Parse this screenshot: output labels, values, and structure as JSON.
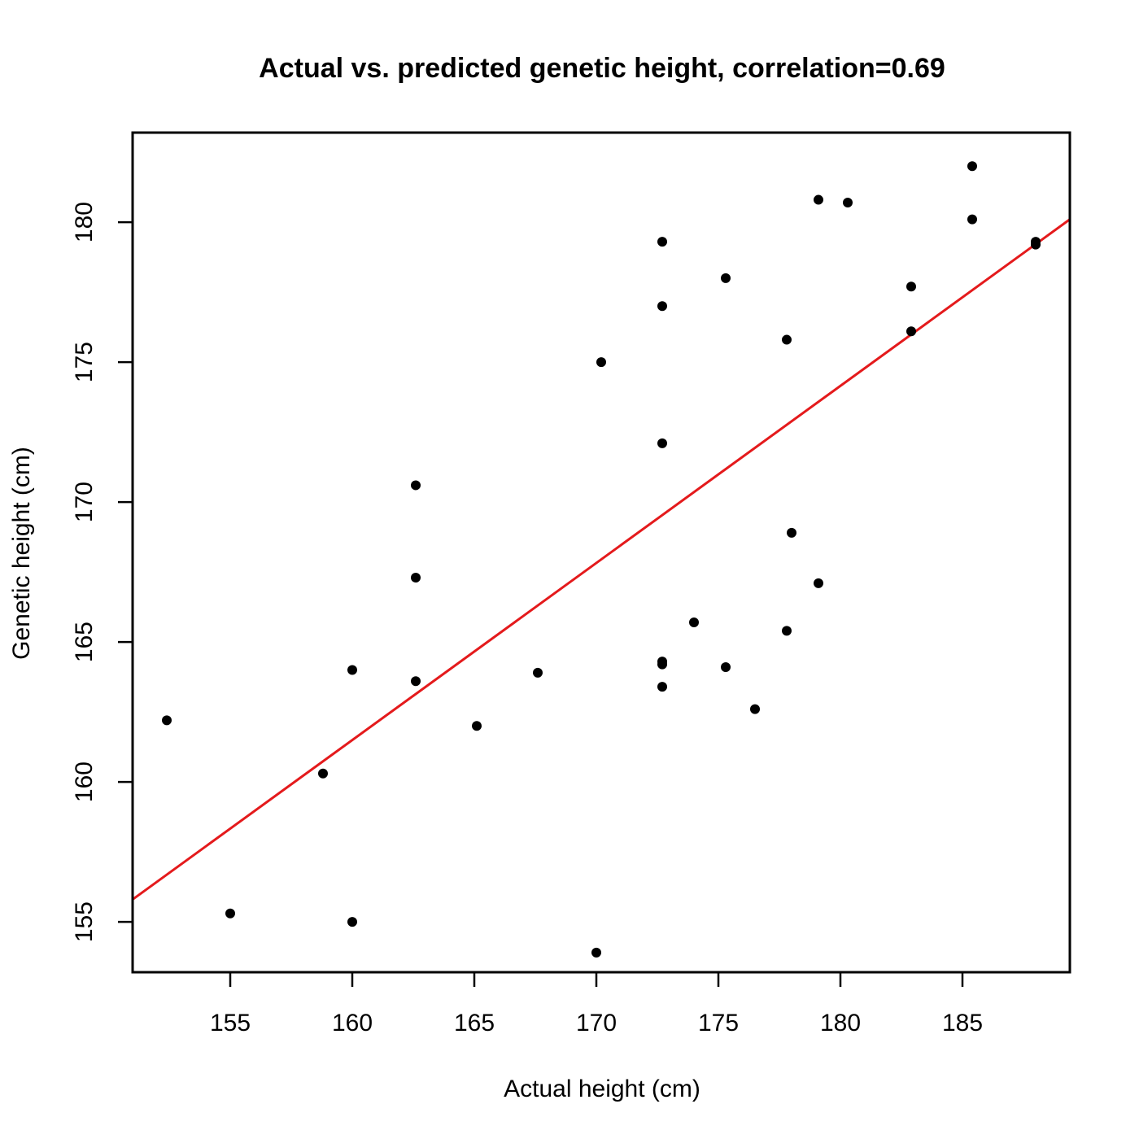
{
  "chart_data": {
    "type": "scatter",
    "title": "Actual vs. predicted genetic height, correlation=0.69",
    "xlabel": "Actual height (cm)",
    "ylabel": "Genetic height (cm)",
    "xlim": [
      151,
      189.4
    ],
    "ylim": [
      153.2,
      183.2
    ],
    "xticks": [
      155,
      160,
      165,
      170,
      175,
      180,
      185
    ],
    "yticks": [
      155,
      160,
      165,
      170,
      175,
      180
    ],
    "xtick_labels": [
      "155",
      "160",
      "165",
      "170",
      "175",
      "180",
      "185"
    ],
    "ytick_labels": [
      "155",
      "160",
      "165",
      "170",
      "175",
      "180"
    ],
    "grid": false,
    "legend": "none",
    "point_color": "#000000",
    "fit_line_color": "#e41a1c",
    "series": [
      {
        "points": [
          {
            "x": 152.4,
            "y": 162.2
          },
          {
            "x": 155.0,
            "y": 155.3
          },
          {
            "x": 158.8,
            "y": 160.3
          },
          {
            "x": 160.0,
            "y": 164.0
          },
          {
            "x": 160.0,
            "y": 155.0
          },
          {
            "x": 162.6,
            "y": 170.6
          },
          {
            "x": 162.6,
            "y": 167.3
          },
          {
            "x": 162.6,
            "y": 163.6
          },
          {
            "x": 165.1,
            "y": 162.0
          },
          {
            "x": 167.6,
            "y": 163.9
          },
          {
            "x": 170.0,
            "y": 153.9
          },
          {
            "x": 170.2,
            "y": 175.0
          },
          {
            "x": 172.7,
            "y": 179.3
          },
          {
            "x": 172.7,
            "y": 177.0
          },
          {
            "x": 172.7,
            "y": 172.1
          },
          {
            "x": 172.7,
            "y": 164.3
          },
          {
            "x": 172.7,
            "y": 164.2
          },
          {
            "x": 172.7,
            "y": 163.4
          },
          {
            "x": 174.0,
            "y": 165.7
          },
          {
            "x": 175.3,
            "y": 178.0
          },
          {
            "x": 175.3,
            "y": 164.1
          },
          {
            "x": 176.5,
            "y": 162.6
          },
          {
            "x": 177.8,
            "y": 175.8
          },
          {
            "x": 177.8,
            "y": 165.4
          },
          {
            "x": 178.0,
            "y": 168.9
          },
          {
            "x": 179.1,
            "y": 180.8
          },
          {
            "x": 179.1,
            "y": 167.1
          },
          {
            "x": 180.3,
            "y": 180.7
          },
          {
            "x": 182.9,
            "y": 177.7
          },
          {
            "x": 182.9,
            "y": 176.1
          },
          {
            "x": 185.4,
            "y": 182.0
          },
          {
            "x": 185.4,
            "y": 180.1
          },
          {
            "x": 188.0,
            "y": 179.3
          },
          {
            "x": 188.0,
            "y": 179.2
          }
        ]
      }
    ],
    "fit_line": {
      "x": [
        151,
        189.4
      ],
      "y": [
        155.8,
        180.1
      ]
    }
  }
}
